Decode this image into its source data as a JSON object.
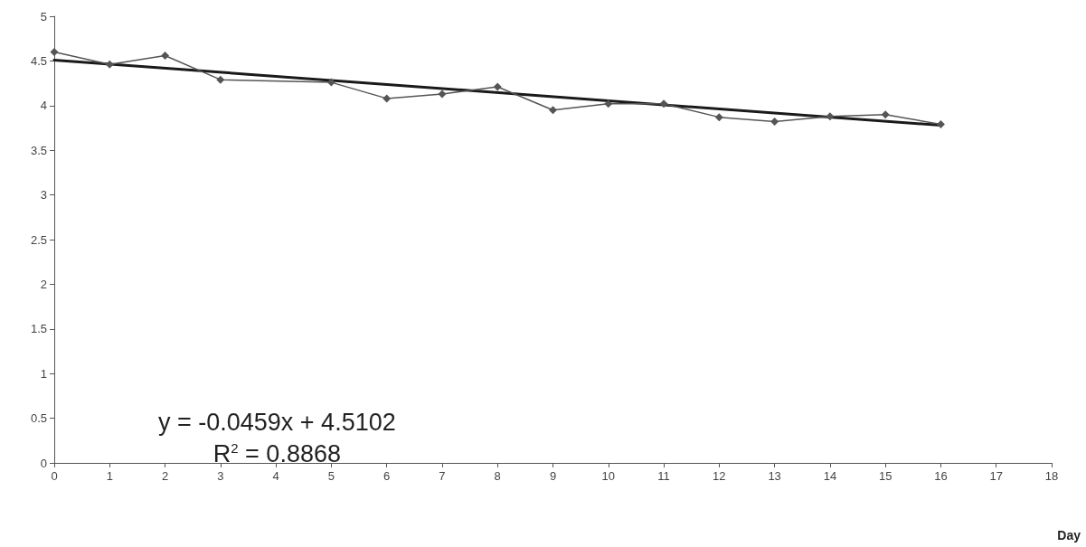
{
  "chart_data": {
    "type": "line",
    "xlabel": "Day",
    "x": [
      0,
      1,
      2,
      3,
      5,
      6,
      7,
      8,
      9,
      10,
      11,
      12,
      13,
      14,
      15,
      16
    ],
    "series": [
      {
        "color": "#555555",
        "marker": "diamond",
        "values": [
          4.6,
          4.46,
          4.56,
          4.29,
          4.26,
          4.08,
          4.13,
          4.21,
          3.95,
          4.02,
          4.02,
          3.87,
          3.82,
          3.88,
          3.9,
          3.79
        ]
      },
      {
        "color": "#1a1a1a",
        "marker": "none",
        "x": [
          0,
          16
        ],
        "values": [
          4.51,
          3.78
        ]
      }
    ],
    "xlim": [
      0,
      18
    ],
    "xticks": [
      0,
      1,
      2,
      3,
      4,
      5,
      6,
      7,
      8,
      9,
      10,
      11,
      12,
      13,
      14,
      15,
      16,
      17,
      18
    ],
    "ylim": [
      0,
      5
    ],
    "yticks": [
      0,
      0.5,
      1,
      1.5,
      2,
      2.5,
      3,
      3.5,
      4,
      4.5,
      5
    ],
    "grid": false,
    "annotations": [
      "y = -0.0459x + 4.5102",
      "R$^{2}$ = 0.8868"
    ]
  }
}
